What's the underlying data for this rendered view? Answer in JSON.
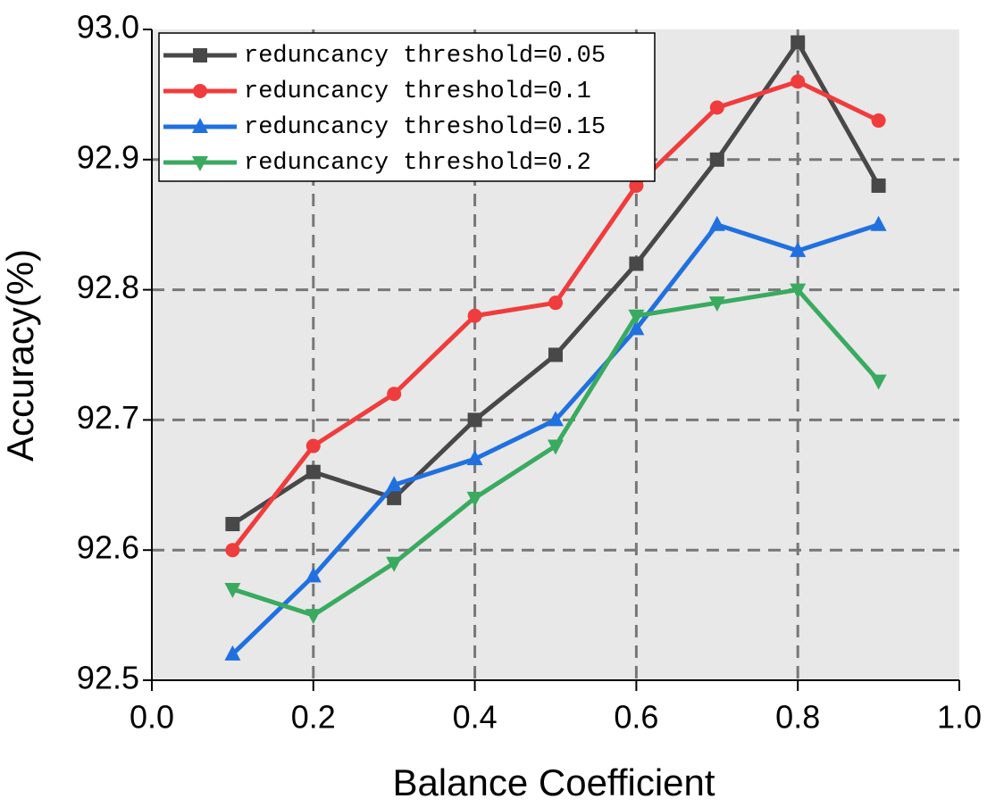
{
  "chart_data": {
    "type": "line",
    "x_label": "Balance Coefficient",
    "y_label": "Accuracy(%)",
    "x": [
      0.1,
      0.2,
      0.3,
      0.4,
      0.5,
      0.6,
      0.7,
      0.8,
      0.9
    ],
    "series": [
      {
        "name": "reduncancy threshold=0.05",
        "color": "#484848",
        "marker": "square",
        "values": [
          92.62,
          92.66,
          92.64,
          92.7,
          92.75,
          92.82,
          92.9,
          92.99,
          92.88
        ]
      },
      {
        "name": "reduncancy threshold=0.1",
        "color": "#f03c3c",
        "marker": "circle",
        "values": [
          92.6,
          92.68,
          92.72,
          92.78,
          92.79,
          92.88,
          92.94,
          92.96,
          92.93
        ]
      },
      {
        "name": "reduncancy threshold=0.15",
        "color": "#2070e0",
        "marker": "triangle-up",
        "values": [
          92.52,
          92.58,
          92.65,
          92.67,
          92.7,
          92.77,
          92.85,
          92.83,
          92.85
        ]
      },
      {
        "name": "reduncancy threshold=0.2",
        "color": "#3aaa60",
        "marker": "triangle-down",
        "values": [
          92.57,
          92.55,
          92.59,
          92.64,
          92.68,
          92.78,
          92.79,
          92.8,
          92.73
        ]
      }
    ],
    "xlim": [
      0,
      1
    ],
    "xticks": [
      {
        "value": 0,
        "label": "0.0"
      },
      0.2,
      0.4,
      0.6,
      0.8,
      {
        "value": 1,
        "label": "1.0"
      }
    ],
    "ylim": [
      92.5,
      93
    ],
    "yticks": [
      92.5,
      92.6,
      92.7,
      92.8,
      92.9,
      {
        "value": 93,
        "label": "93.0"
      }
    ],
    "grid": true,
    "legend": "top-left"
  }
}
